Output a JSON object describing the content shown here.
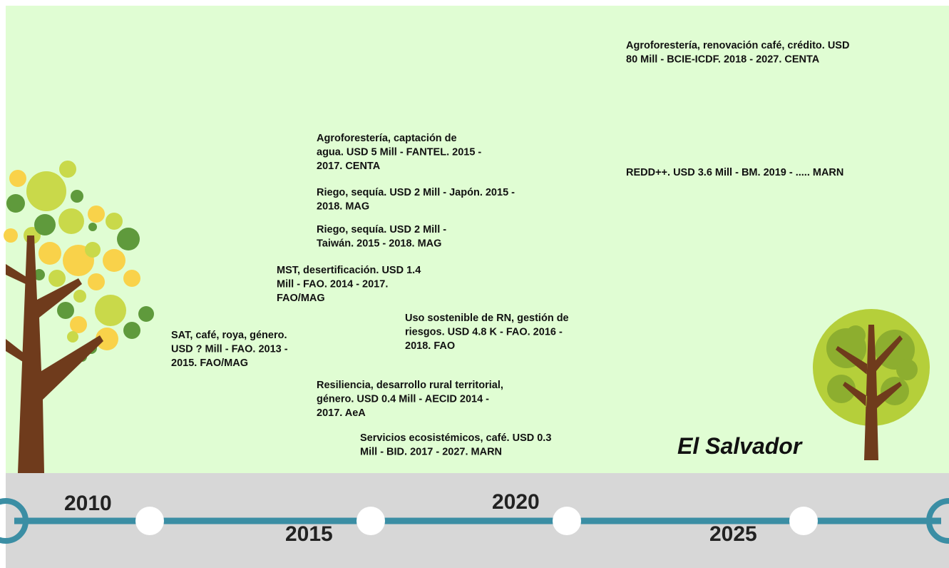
{
  "title": "El Salvador",
  "timeline": {
    "years": [
      "2010",
      "2015",
      "2020",
      "2025"
    ]
  },
  "projects": [
    {
      "lines": [
        "Agroforestería, renovación café, crédito. USD",
        "80 Mill - BCIE-ICDF. 2018 - 2027. CENTA"
      ]
    },
    {
      "lines": [
        "REDD++. USD 3.6 Mill - BM. 2019 - ..... MARN"
      ]
    },
    {
      "lines": [
        "Agroforestería, captación de",
        "agua. USD 5 Mill - FANTEL. 2015 -",
        "2017. CENTA"
      ]
    },
    {
      "lines": [
        "Riego, sequía.  USD 2 Mill - Japón. 2015 -",
        "2018. MAG"
      ]
    },
    {
      "lines": [
        "Riego, sequía.  USD 2 Mill -",
        "Taiwán. 2015 - 2018. MAG"
      ]
    },
    {
      "lines": [
        "MST, desertificación.  USD 1.4",
        "Mill - FAO. 2014 - 2017.",
        "FAO/MAG"
      ]
    },
    {
      "lines": [
        "Uso sostenible de RN, gestión de",
        "riesgos. USD 4.8 K - FAO. 2016 -",
        "2018. FAO"
      ]
    },
    {
      "lines": [
        "SAT, café, roya, género.",
        " USD ? Mill - FAO. 2013 -",
        "2015. FAO/MAG"
      ]
    },
    {
      "lines": [
        "Resiliencia, desarrollo rural territorial,",
        "género. USD 0.4 Mill - AECID 2014 -",
        "2017. AeA"
      ]
    },
    {
      "lines": [
        "Servicios ecosistémicos, café. USD 0.3",
        "Mill - BID. 2017 - 2027. MARN"
      ]
    }
  ]
}
